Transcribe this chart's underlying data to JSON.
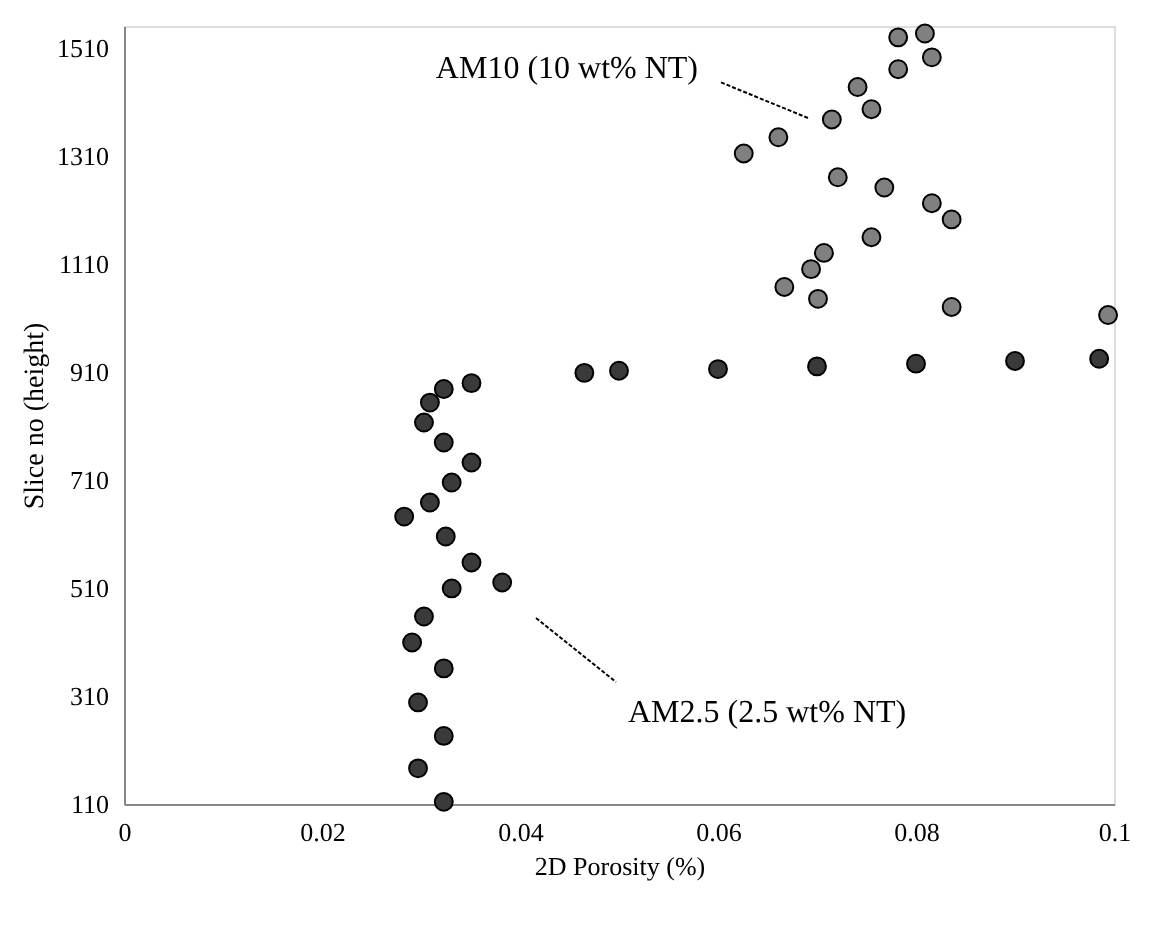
{
  "chart_data": {
    "type": "scatter",
    "xlabel": "2D Porosity (%)",
    "ylabel": "Slice no (height)",
    "xlim": [
      0,
      0.1
    ],
    "xticks": [
      0,
      0.02,
      0.04,
      0.06,
      0.08,
      0.1
    ],
    "ylim": [
      110,
      1550
    ],
    "yticks": [
      110,
      310,
      510,
      710,
      910,
      1110,
      1310,
      1510
    ],
    "grid": false,
    "marker": "circle",
    "series": [
      {
        "color": "#3a3a3a",
        "x": [
          0.0323,
          0.0297,
          0.0323,
          0.0297,
          0.0323,
          0.0291,
          0.0303,
          0.0331,
          0.0382,
          0.0351,
          0.0325,
          0.0283,
          0.0309,
          0.0331,
          0.0351,
          0.0323,
          0.0303,
          0.0309,
          0.0323,
          0.0351,
          0.0465,
          0.05,
          0.06,
          0.07,
          0.08,
          0.09,
          0.0985
        ],
        "values": [
          114,
          176,
          236,
          298,
          361,
          409,
          457,
          509,
          520,
          557,
          605,
          642,
          668,
          705,
          742,
          779,
          816,
          853,
          878,
          889,
          908,
          912,
          915,
          920,
          925,
          930,
          934
        ]
      },
      {
        "color": "#808080",
        "x": [
          0.0994,
          0.0836,
          0.0701,
          0.0667,
          0.0694,
          0.0707,
          0.0755,
          0.0836,
          0.0816,
          0.0768,
          0.0721,
          0.0626,
          0.0661,
          0.0715,
          0.0755,
          0.0741,
          0.0782,
          0.0816,
          0.0782,
          0.0809
        ],
        "values": [
          1015,
          1030,
          1045,
          1067,
          1100,
          1130,
          1159,
          1192,
          1222,
          1251,
          1270,
          1314,
          1344,
          1377,
          1396,
          1437,
          1470,
          1492,
          1529,
          1536
        ]
      }
    ],
    "annotations": [
      "AM10 (10 wt% NT)",
      "AM2.5 (2.5 wt% NT)"
    ]
  }
}
